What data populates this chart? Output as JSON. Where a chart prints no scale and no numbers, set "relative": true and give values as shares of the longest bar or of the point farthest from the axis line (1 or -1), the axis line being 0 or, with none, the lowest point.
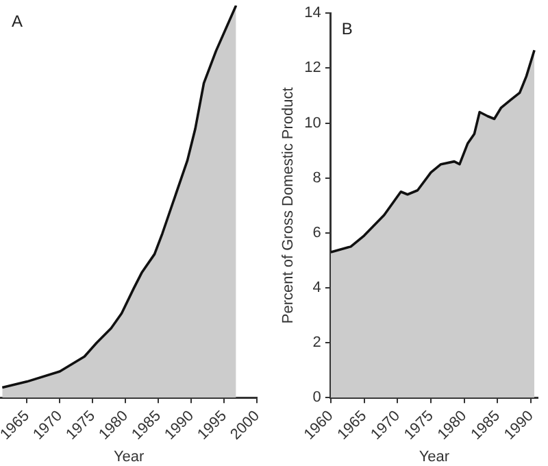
{
  "chart_data": [
    {
      "type": "area",
      "title": "A",
      "xlabel": "Year",
      "relative": true,
      "xlim": [
        1961,
        2000
      ],
      "xticks": [
        1965,
        1970,
        1975,
        1980,
        1985,
        1990,
        1995,
        2000
      ],
      "series": [
        {
          "color": "#cccccc",
          "x": [
            1961.25,
            1965,
            1970,
            1973.75,
            1975.6,
            1977.8,
            1979.4,
            1981.25,
            1982.5,
            1984.4,
            1985.6,
            1987.5,
            1989.4,
            1990.6,
            1991.9,
            1993.75,
            1996.8
          ],
          "values": [
            0.026,
            0.041,
            0.067,
            0.105,
            0.14,
            0.177,
            0.215,
            0.279,
            0.32,
            0.366,
            0.419,
            0.512,
            0.605,
            0.686,
            0.802,
            0.884,
            1
          ]
        }
      ]
    },
    {
      "type": "area",
      "title": "B",
      "xlabel": "Year",
      "ylabel": "Percent of Gross Domestic Product",
      "xlim": [
        1960,
        1991
      ],
      "xticks": [
        1960,
        1965,
        1970,
        1975,
        1980,
        1985,
        1990
      ],
      "ylim": [
        0,
        14
      ],
      "yticks": [
        0,
        2,
        4,
        6,
        8,
        10,
        12,
        14
      ],
      "series": [
        {
          "color": "#cccccc",
          "x": [
            1960,
            1963,
            1965,
            1968,
            1970.5,
            1971.5,
            1973,
            1975,
            1976.5,
            1978.5,
            1979.3,
            1980.5,
            1981.5,
            1982.3,
            1983.5,
            1984.5,
            1985.5,
            1987,
            1988.3,
            1989.3,
            1990.5
          ],
          "values": [
            5.3,
            5.5,
            5.9,
            6.65,
            7.5,
            7.4,
            7.55,
            8.2,
            8.5,
            8.6,
            8.5,
            9.25,
            9.6,
            10.4,
            10.25,
            10.15,
            10.55,
            10.85,
            11.1,
            11.7,
            12.65
          ]
        }
      ]
    }
  ]
}
